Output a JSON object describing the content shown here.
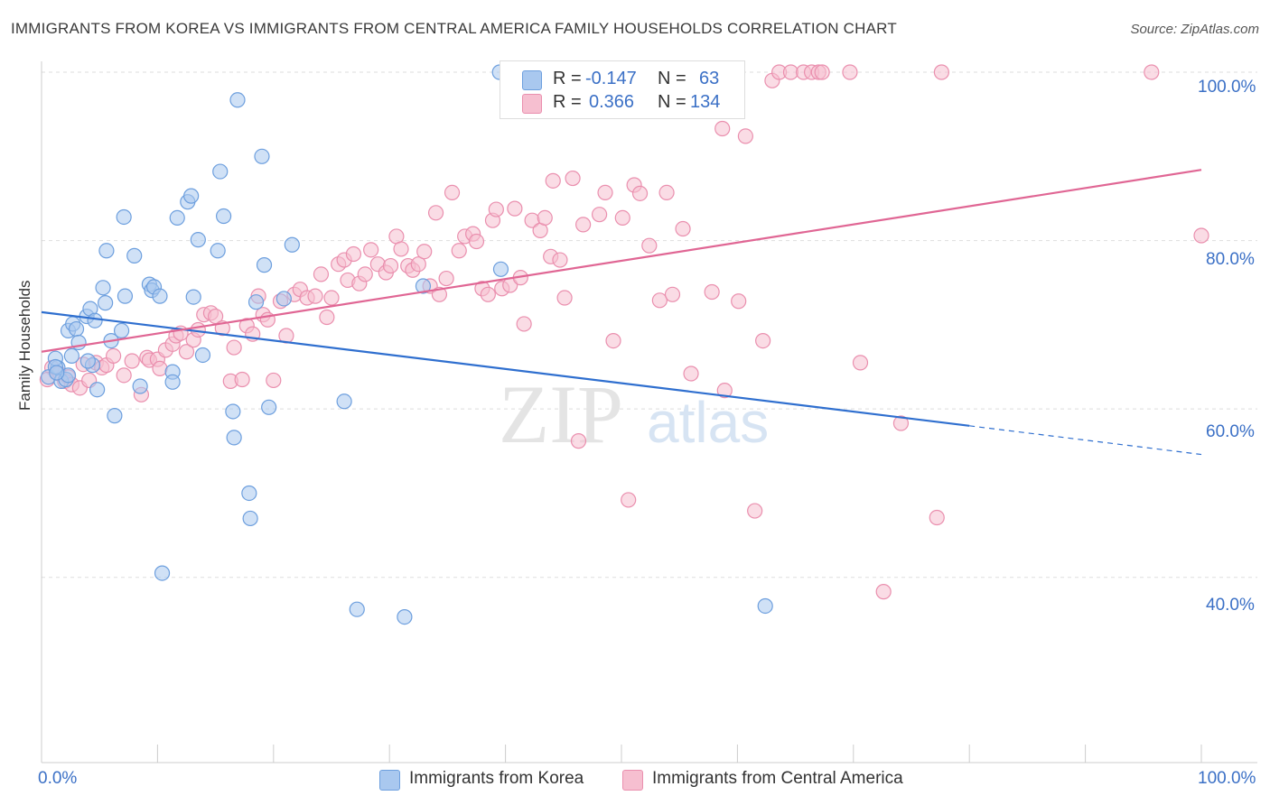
{
  "title": "IMMIGRANTS FROM KOREA VS IMMIGRANTS FROM CENTRAL AMERICA FAMILY HOUSEHOLDS CORRELATION CHART",
  "source": "Source: ZipAtlas.com",
  "legend_stats": {
    "korea": {
      "r_label": "R =",
      "r_value": "-0.147",
      "n_label": "N =",
      "n_value": "63"
    },
    "central_america": {
      "r_label": "R =",
      "r_value": "0.366",
      "n_label": "N =",
      "n_value": "134"
    }
  },
  "watermark": {
    "zip": "ZIP",
    "atlas": "atlas"
  },
  "colors": {
    "korea_fill": "#a9c8ef",
    "korea_stroke": "#6d9fde",
    "korea_line": "#2f6fcf",
    "ca_fill": "#f6bfd0",
    "ca_stroke": "#ea8fae",
    "ca_line": "#e06694",
    "axis_text": "#3b70c6",
    "grid": "#dddddd"
  },
  "chart_data": {
    "type": "scatter",
    "title": "IMMIGRANTS FROM KOREA VS IMMIGRANTS FROM CENTRAL AMERICA FAMILY HOUSEHOLDS CORRELATION CHART",
    "xlabel": "",
    "ylabel": "Family Households",
    "xlim": [
      0,
      100
    ],
    "ylim": [
      18,
      100
    ],
    "x_tick_labels": [
      "0.0%",
      "100.0%"
    ],
    "y_ticks": [
      40,
      60,
      80,
      100
    ],
    "y_tick_labels": [
      "40.0%",
      "60.0%",
      "80.0%",
      "100.0%"
    ],
    "grid": true,
    "legend_position": "bottom",
    "series": [
      {
        "name": "Immigrants from Korea",
        "points": [
          [
            0.6,
            63.8
          ],
          [
            1.4,
            64.9
          ],
          [
            1.2,
            66.0
          ],
          [
            1.7,
            63.3
          ],
          [
            2.1,
            63.5
          ],
          [
            2.3,
            69.3
          ],
          [
            2.7,
            70.1
          ],
          [
            2.6,
            66.3
          ],
          [
            3.0,
            69.5
          ],
          [
            3.2,
            67.9
          ],
          [
            3.9,
            71.0
          ],
          [
            4.2,
            71.9
          ],
          [
            4.6,
            70.5
          ],
          [
            4.4,
            65.2
          ],
          [
            4.8,
            62.3
          ],
          [
            5.3,
            74.4
          ],
          [
            5.5,
            72.6
          ],
          [
            5.6,
            78.8
          ],
          [
            6.0,
            68.1
          ],
          [
            6.3,
            59.2
          ],
          [
            6.9,
            69.3
          ],
          [
            7.2,
            73.4
          ],
          [
            7.1,
            82.8
          ],
          [
            8.0,
            78.2
          ],
          [
            8.5,
            62.7
          ],
          [
            9.3,
            74.8
          ],
          [
            9.5,
            74.1
          ],
          [
            9.7,
            74.5
          ],
          [
            10.2,
            73.4
          ],
          [
            10.4,
            40.5
          ],
          [
            11.3,
            64.4
          ],
          [
            11.3,
            63.2
          ],
          [
            11.7,
            82.7
          ],
          [
            12.6,
            84.6
          ],
          [
            12.9,
            85.3
          ],
          [
            13.1,
            73.3
          ],
          [
            13.5,
            80.1
          ],
          [
            13.9,
            66.4
          ],
          [
            15.2,
            78.8
          ],
          [
            15.4,
            88.2
          ],
          [
            15.7,
            82.9
          ],
          [
            16.5,
            59.7
          ],
          [
            16.6,
            56.6
          ],
          [
            16.9,
            96.7
          ],
          [
            17.9,
            50.0
          ],
          [
            18.0,
            47.0
          ],
          [
            18.5,
            72.7
          ],
          [
            19.0,
            90.0
          ],
          [
            19.2,
            77.1
          ],
          [
            19.6,
            60.2
          ],
          [
            20.9,
            73.1
          ],
          [
            21.6,
            79.5
          ],
          [
            26.1,
            60.9
          ],
          [
            27.2,
            36.2
          ],
          [
            31.3,
            35.3
          ],
          [
            32.9,
            74.6
          ],
          [
            39.5,
            100
          ],
          [
            39.6,
            76.6
          ],
          [
            62.4,
            36.6
          ],
          [
            1.2,
            65.0
          ],
          [
            2.3,
            64.0
          ],
          [
            4.0,
            65.7
          ],
          [
            1.3,
            64.3
          ]
        ]
      },
      {
        "name": "Immigrants from Central America",
        "points": [
          [
            0.9,
            64.9
          ],
          [
            1.5,
            64.2
          ],
          [
            2.0,
            63.3
          ],
          [
            2.3,
            63.8
          ],
          [
            2.6,
            62.9
          ],
          [
            3.3,
            62.5
          ],
          [
            3.6,
            65.3
          ],
          [
            4.1,
            63.4
          ],
          [
            4.7,
            65.5
          ],
          [
            5.2,
            64.9
          ],
          [
            5.6,
            65.2
          ],
          [
            6.2,
            66.3
          ],
          [
            7.1,
            64.0
          ],
          [
            7.8,
            65.7
          ],
          [
            8.6,
            61.7
          ],
          [
            9.1,
            66.1
          ],
          [
            9.3,
            65.8
          ],
          [
            10.0,
            65.9
          ],
          [
            10.2,
            64.8
          ],
          [
            10.7,
            67.0
          ],
          [
            11.3,
            67.7
          ],
          [
            11.6,
            68.7
          ],
          [
            12.0,
            69.0
          ],
          [
            12.5,
            66.8
          ],
          [
            13.1,
            68.2
          ],
          [
            13.5,
            69.4
          ],
          [
            14.0,
            71.2
          ],
          [
            14.6,
            71.4
          ],
          [
            15.0,
            71.0
          ],
          [
            15.6,
            69.6
          ],
          [
            16.3,
            63.3
          ],
          [
            16.6,
            67.3
          ],
          [
            17.3,
            63.5
          ],
          [
            17.7,
            69.9
          ],
          [
            18.2,
            68.9
          ],
          [
            18.7,
            73.4
          ],
          [
            19.1,
            71.2
          ],
          [
            19.5,
            70.6
          ],
          [
            20.0,
            63.4
          ],
          [
            20.6,
            72.8
          ],
          [
            21.1,
            68.7
          ],
          [
            21.8,
            73.6
          ],
          [
            22.3,
            74.2
          ],
          [
            22.9,
            73.2
          ],
          [
            23.6,
            73.4
          ],
          [
            24.1,
            76.0
          ],
          [
            24.6,
            70.9
          ],
          [
            25.0,
            73.2
          ],
          [
            25.6,
            77.2
          ],
          [
            26.1,
            77.7
          ],
          [
            26.4,
            75.3
          ],
          [
            26.9,
            78.4
          ],
          [
            27.4,
            74.9
          ],
          [
            27.9,
            76.0
          ],
          [
            28.4,
            78.9
          ],
          [
            29.0,
            77.2
          ],
          [
            29.7,
            76.2
          ],
          [
            30.1,
            77.0
          ],
          [
            30.6,
            80.5
          ],
          [
            31.0,
            79.0
          ],
          [
            31.6,
            77.0
          ],
          [
            32.0,
            76.5
          ],
          [
            32.5,
            77.2
          ],
          [
            33.0,
            78.7
          ],
          [
            33.5,
            74.6
          ],
          [
            34.0,
            83.3
          ],
          [
            34.3,
            73.6
          ],
          [
            34.9,
            75.5
          ],
          [
            35.4,
            85.7
          ],
          [
            36.0,
            78.8
          ],
          [
            36.5,
            80.5
          ],
          [
            37.2,
            80.8
          ],
          [
            37.5,
            79.9
          ],
          [
            38.0,
            74.3
          ],
          [
            38.5,
            73.6
          ],
          [
            38.9,
            82.4
          ],
          [
            39.2,
            83.7
          ],
          [
            39.7,
            74.3
          ],
          [
            40.4,
            74.7
          ],
          [
            40.8,
            83.8
          ],
          [
            41.3,
            75.6
          ],
          [
            41.6,
            70.1
          ],
          [
            42.3,
            82.4
          ],
          [
            43.0,
            81.2
          ],
          [
            43.4,
            82.7
          ],
          [
            43.9,
            78.1
          ],
          [
            44.1,
            87.1
          ],
          [
            44.7,
            77.7
          ],
          [
            45.1,
            73.2
          ],
          [
            45.8,
            87.4
          ],
          [
            46.3,
            56.2
          ],
          [
            46.7,
            81.9
          ],
          [
            47.2,
            95.6
          ],
          [
            48.1,
            83.1
          ],
          [
            48.6,
            85.7
          ],
          [
            49.3,
            68.1
          ],
          [
            50.1,
            82.7
          ],
          [
            50.6,
            49.2
          ],
          [
            51.1,
            86.6
          ],
          [
            51.6,
            85.6
          ],
          [
            52.4,
            79.4
          ],
          [
            53.3,
            72.9
          ],
          [
            53.9,
            85.7
          ],
          [
            54.4,
            73.6
          ],
          [
            55.3,
            81.4
          ],
          [
            56.0,
            64.2
          ],
          [
            56.3,
            100
          ],
          [
            57.0,
            100
          ],
          [
            57.8,
            73.9
          ],
          [
            58.7,
            93.3
          ],
          [
            58.9,
            62.2
          ],
          [
            60.1,
            72.8
          ],
          [
            60.7,
            92.4
          ],
          [
            61.5,
            47.9
          ],
          [
            62.2,
            68.1
          ],
          [
            63.0,
            99.0
          ],
          [
            63.6,
            100
          ],
          [
            64.6,
            100
          ],
          [
            65.7,
            100
          ],
          [
            66.4,
            100
          ],
          [
            67.0,
            100
          ],
          [
            67.3,
            100
          ],
          [
            69.7,
            100
          ],
          [
            70.6,
            65.5
          ],
          [
            72.6,
            38.3
          ],
          [
            74.1,
            58.3
          ],
          [
            77.2,
            47.1
          ],
          [
            77.6,
            100
          ],
          [
            95.7,
            100
          ],
          [
            100.0,
            80.6
          ],
          [
            42.0,
            100
          ],
          [
            55.5,
            100
          ],
          [
            58.1,
            100
          ],
          [
            0.5,
            63.5
          ]
        ]
      }
    ],
    "trend_lines": [
      {
        "series": "Immigrants from Korea",
        "x_start": 0,
        "y_start": 71.5,
        "x_solid_end": 80,
        "y_solid_end": 58.0,
        "x_dash_end": 100,
        "y_dash_end": 54.6
      },
      {
        "series": "Immigrants from Central America",
        "x_start": 0,
        "y_start": 66.8,
        "x_end": 100,
        "y_end": 88.4
      }
    ]
  }
}
